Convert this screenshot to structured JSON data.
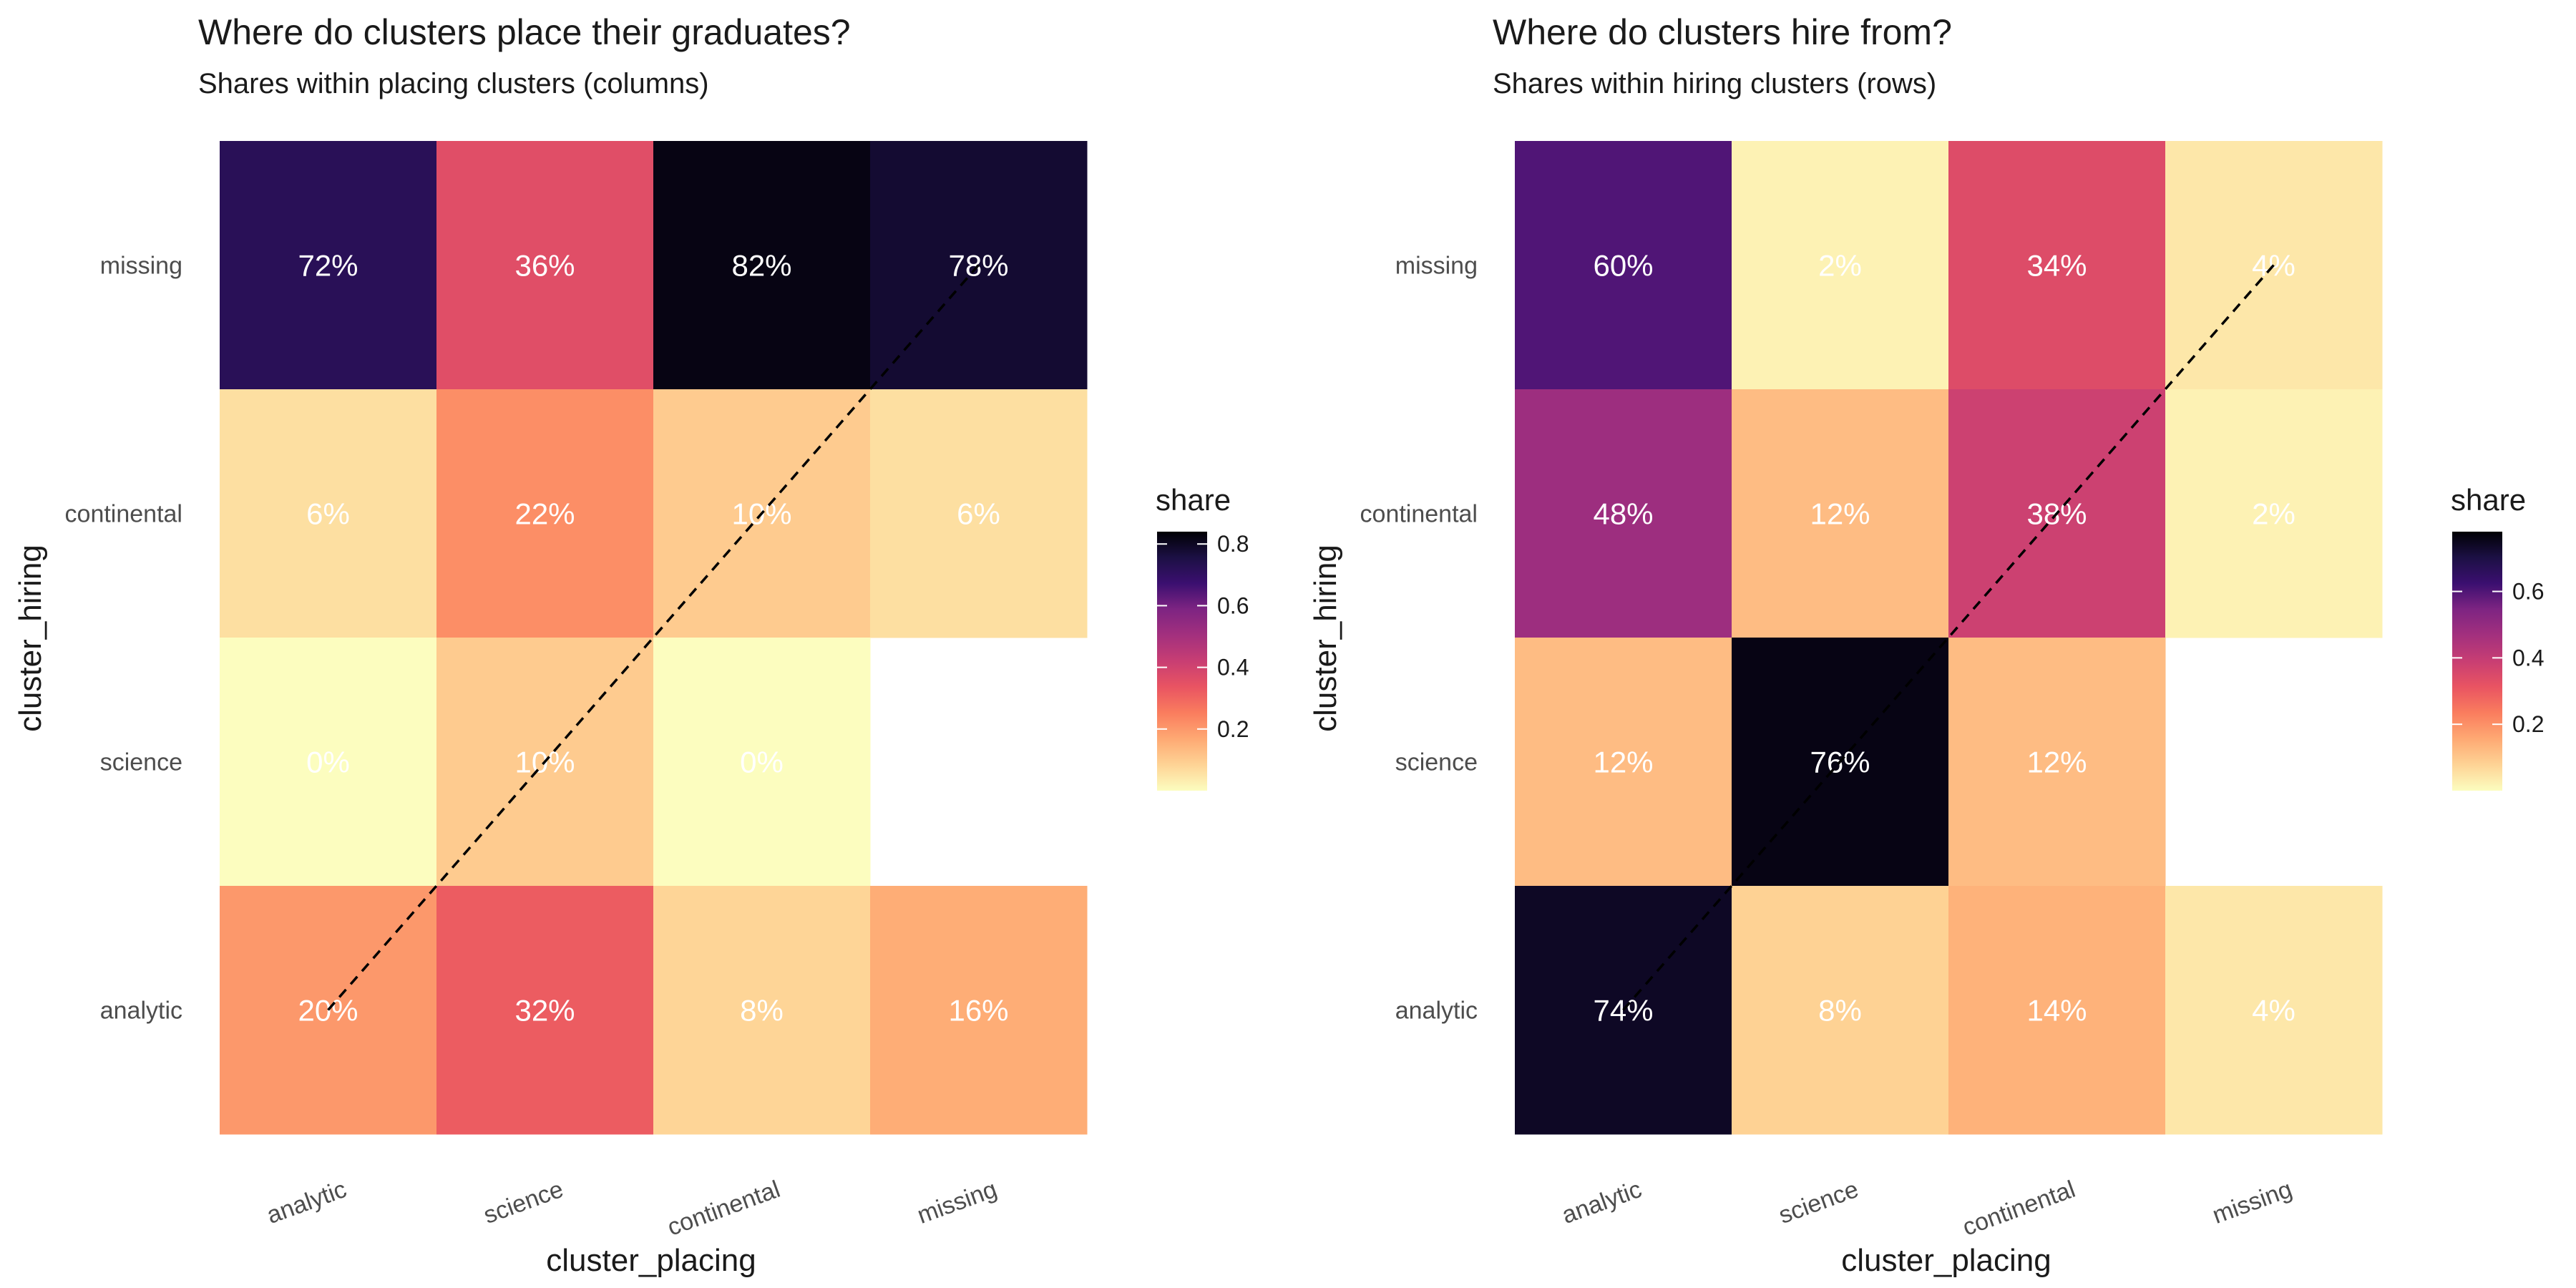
{
  "chart_data": [
    {
      "type": "heatmap",
      "title": "Where do clusters place their graduates?",
      "subtitle": "Shares within placing clusters (columns)",
      "xlabel": "cluster_placing",
      "ylabel": "cluster_hiring",
      "x_categories": [
        "analytic",
        "science",
        "continental",
        "missing"
      ],
      "y_categories": [
        "missing",
        "continental",
        "science",
        "analytic"
      ],
      "values": [
        [
          0.72,
          0.36,
          0.82,
          0.78
        ],
        [
          0.06,
          0.22,
          0.1,
          0.06
        ],
        [
          0.0,
          0.1,
          0.0,
          null
        ],
        [
          0.2,
          0.32,
          0.08,
          0.16
        ]
      ],
      "labels": [
        [
          "72%",
          "36%",
          "82%",
          "78%"
        ],
        [
          "6%",
          "22%",
          "10%",
          "6%"
        ],
        [
          "0%",
          "10%",
          "0%",
          ""
        ],
        [
          "20%",
          "32%",
          "8%",
          "16%"
        ]
      ],
      "diagonal": "dashed",
      "legend": {
        "title": "share",
        "ticks": [
          "0.2",
          "0.4",
          "0.6",
          "0.8"
        ],
        "range": [
          0,
          0.84
        ],
        "placement": "right"
      },
      "colormap": "magma_r"
    },
    {
      "type": "heatmap",
      "title": "Where do clusters hire from?",
      "subtitle": "Shares within hiring clusters (rows)",
      "xlabel": "cluster_placing",
      "ylabel": "cluster_hiring",
      "x_categories": [
        "analytic",
        "science",
        "continental",
        "missing"
      ],
      "y_categories": [
        "missing",
        "continental",
        "science",
        "analytic"
      ],
      "values": [
        [
          0.6,
          0.02,
          0.34,
          0.04
        ],
        [
          0.48,
          0.12,
          0.38,
          0.02
        ],
        [
          0.12,
          0.76,
          0.12,
          null
        ],
        [
          0.74,
          0.08,
          0.14,
          0.04
        ]
      ],
      "labels": [
        [
          "60%",
          "2%",
          "34%",
          "4%"
        ],
        [
          "48%",
          "12%",
          "38%",
          "2%"
        ],
        [
          "12%",
          "76%",
          "12%",
          ""
        ],
        [
          "74%",
          "8%",
          "14%",
          "4%"
        ]
      ],
      "diagonal": "dashed",
      "legend": {
        "title": "share",
        "ticks": [
          "0.2",
          "0.4",
          "0.6"
        ],
        "range": [
          0,
          0.78
        ],
        "placement": "right"
      },
      "colormap": "magma_r"
    }
  ]
}
